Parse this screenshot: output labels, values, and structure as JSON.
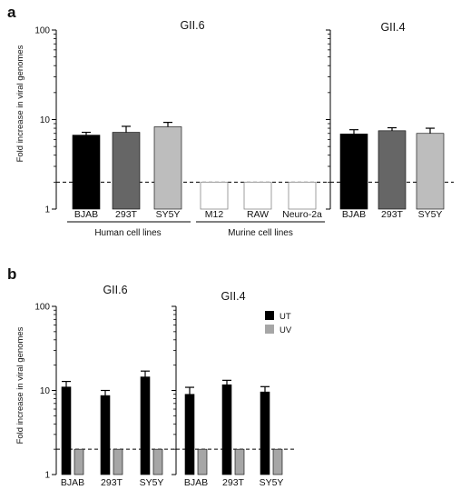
{
  "panels": {
    "a": {
      "letter": "a",
      "ylabel": "Fold increase in viral genomes",
      "titles": [
        "GII.6",
        "GII.4"
      ],
      "groups": [
        "Human cell lines",
        "Murine cell lines"
      ]
    },
    "b": {
      "letter": "b",
      "ylabel": "Fold increase in viral genomes",
      "titles": [
        "GII.6",
        "GII.4"
      ]
    }
  },
  "colors": {
    "black": "#000000",
    "dark_gray": "#666666",
    "light_gray": "#bdbdbd",
    "uv_gray": "#a6a6a6",
    "white": "#ffffff"
  },
  "chart_data": [
    {
      "type": "bar",
      "panel": "a",
      "title": "GII.6",
      "ylabel": "Fold increase in viral genomes",
      "yscale": "log",
      "ylim": [
        1,
        100
      ],
      "yticks": [
        1,
        10,
        100
      ],
      "threshold_line": 2,
      "categories": [
        "BJAB",
        "293T",
        "SY5Y",
        "M12",
        "RAW",
        "Neuro-2a"
      ],
      "values": [
        6.7,
        7.2,
        8.3,
        2,
        2,
        2
      ],
      "errors": [
        0.5,
        1.2,
        1.0,
        0,
        0,
        0
      ],
      "fills": [
        "black",
        "dark_gray",
        "light_gray",
        "white",
        "white",
        "white"
      ],
      "groups": [
        {
          "label": "Human cell lines",
          "categories": [
            "BJAB",
            "293T",
            "SY5Y"
          ]
        },
        {
          "label": "Murine cell lines",
          "categories": [
            "M12",
            "RAW",
            "Neuro-2a"
          ]
        }
      ]
    },
    {
      "type": "bar",
      "panel": "a",
      "title": "GII.4",
      "yscale": "log",
      "ylim": [
        1,
        100
      ],
      "threshold_line": 2,
      "categories": [
        "BJAB",
        "293T",
        "SY5Y"
      ],
      "values": [
        6.9,
        7.5,
        7.0
      ],
      "errors": [
        0.8,
        0.6,
        1.0
      ],
      "fills": [
        "black",
        "dark_gray",
        "light_gray"
      ]
    },
    {
      "type": "bar",
      "panel": "b",
      "title": "GII.6",
      "ylabel": "Fold increase in viral genomes",
      "yscale": "log",
      "ylim": [
        1,
        100
      ],
      "yticks": [
        1,
        10,
        100
      ],
      "threshold_line": 2,
      "categories": [
        "BJAB",
        "293T",
        "SY5Y"
      ],
      "series": [
        {
          "name": "UT",
          "values": [
            11.0,
            8.7,
            14.5
          ],
          "errors": [
            1.8,
            1.3,
            2.5
          ],
          "color": "black"
        },
        {
          "name": "UV",
          "values": [
            2,
            2,
            2
          ],
          "errors": [
            0,
            0,
            0
          ],
          "color": "uv_gray"
        }
      ]
    },
    {
      "type": "bar",
      "panel": "b",
      "title": "GII.4",
      "yscale": "log",
      "ylim": [
        1,
        100
      ],
      "threshold_line": 2,
      "categories": [
        "BJAB",
        "293T",
        "SY5Y"
      ],
      "series": [
        {
          "name": "UT",
          "values": [
            9.0,
            11.7,
            9.6
          ],
          "errors": [
            1.9,
            1.5,
            1.5
          ],
          "color": "black"
        },
        {
          "name": "UV",
          "values": [
            2,
            2,
            2
          ],
          "errors": [
            0,
            0,
            0
          ],
          "color": "uv_gray"
        }
      ],
      "legend": {
        "entries": [
          "UT",
          "UV"
        ],
        "position": "top-right"
      }
    }
  ]
}
